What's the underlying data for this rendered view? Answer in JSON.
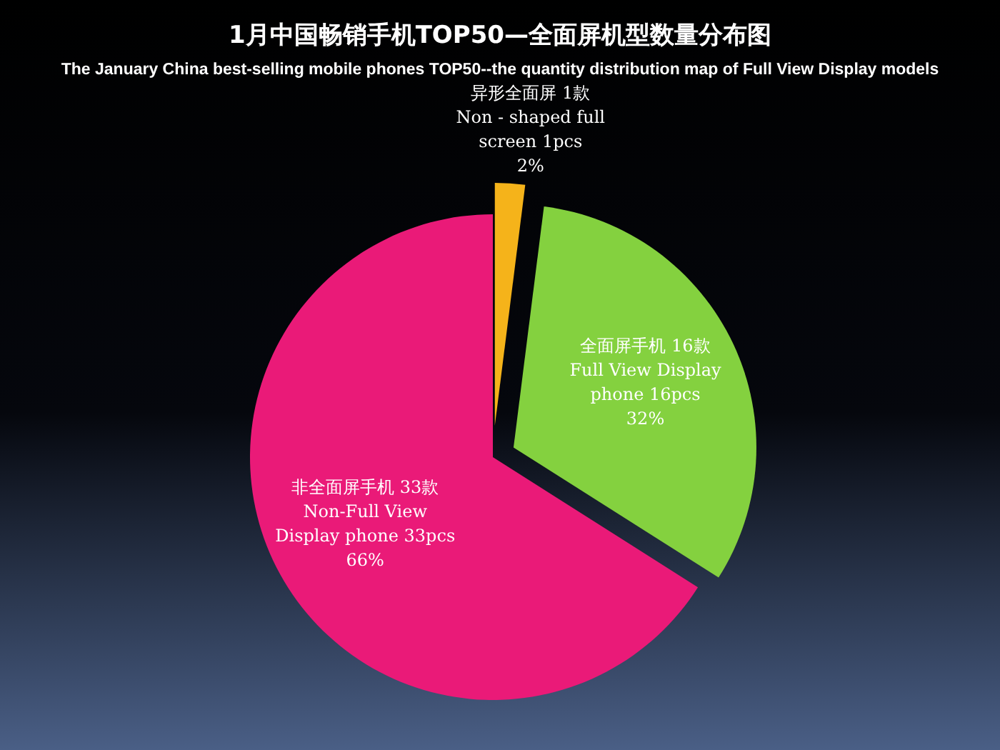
{
  "chart_data": {
    "type": "pie",
    "title": "1月中国畅销手机TOP50—全面屏机型数量分布图",
    "subtitle": "The January China best-selling mobile phones TOP50--the quantity distribution map of Full View Display models",
    "categories": [
      "异形全面屏 1款\nNon - shaped full\nscreen 1pcs",
      "全面屏手机 16款\nFull View Display\nphone 16pcs",
      "非全面屏手机 33款\nNon-Full View\nDisplay phone 33pcs"
    ],
    "values": [
      2,
      32,
      66
    ],
    "colors": [
      "#f5b31a",
      "#84d13f",
      "#ea1a78"
    ],
    "value_labels": [
      "2%",
      "32%",
      "66%"
    ]
  }
}
